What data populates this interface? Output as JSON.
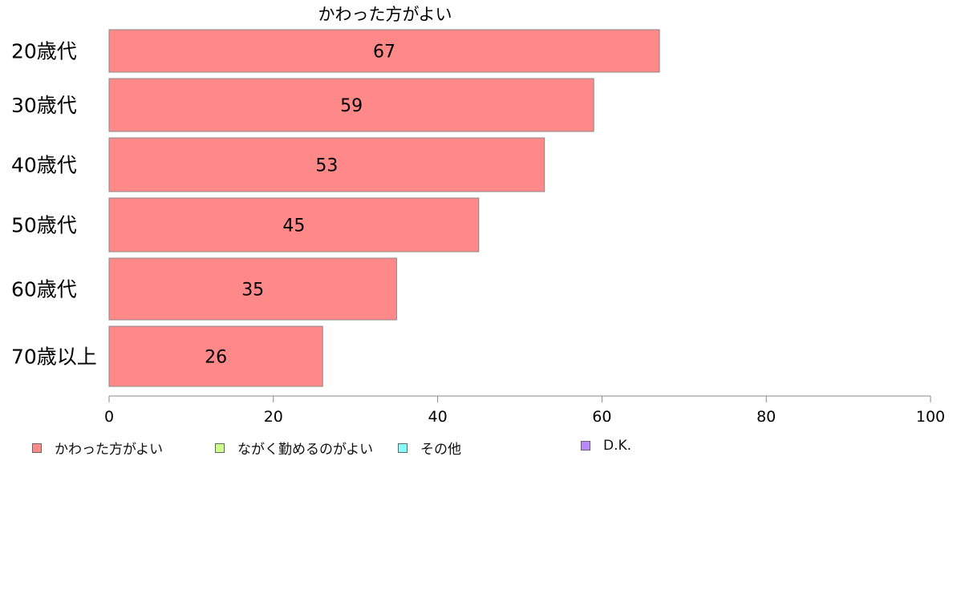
{
  "chart_data": {
    "type": "bar",
    "orientation": "horizontal",
    "title": "かわった方がよい",
    "categories": [
      "20歳代",
      "30歳代",
      "40歳代",
      "50歳代",
      "60歳代",
      "70歳以上"
    ],
    "series": [
      {
        "name": "かわった方がよい",
        "values": [
          67,
          59,
          53,
          45,
          35,
          26
        ],
        "color": "#ff8888"
      }
    ],
    "xlim": [
      0,
      100
    ],
    "xticks": [
      0,
      20,
      40,
      60,
      80,
      100
    ],
    "grid": false,
    "legend": {
      "placement": "bottom",
      "items": [
        {
          "label": "かわった方がよい",
          "color": "#ff8888"
        },
        {
          "label": "ながく勤めるのがよい",
          "color": "#ccff88"
        },
        {
          "label": "その他",
          "color": "#88ffff"
        },
        {
          "label": "D.K.",
          "color": "#bb88ff"
        }
      ]
    }
  }
}
